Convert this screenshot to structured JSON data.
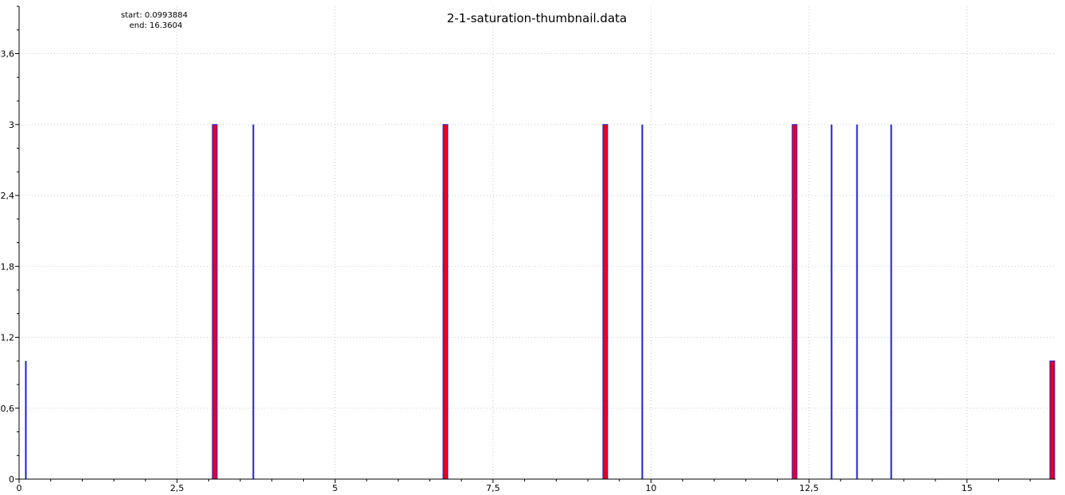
{
  "chart_data": {
    "type": "bar",
    "title": "2-1-saturation-thumbnail.data",
    "range_info": {
      "start_label": "start: 0.0993884",
      "end_label": "end: 16.3604"
    },
    "xlabel": "",
    "ylabel": "",
    "xlim": [
      0,
      16.4
    ],
    "ylim": [
      0,
      4.0
    ],
    "x_ticks": [
      0,
      2.5,
      5,
      7.5,
      10,
      12.5,
      15
    ],
    "x_tick_labels": [
      "0",
      "2,5",
      "5",
      "7,5",
      "10",
      "12,5",
      "15"
    ],
    "y_ticks": [
      0,
      0.6,
      1.2,
      1.8,
      2.4,
      3.0,
      3.6
    ],
    "y_tick_labels": [
      "0",
      "0,6",
      "1,2",
      "1,8",
      "2,4",
      "3",
      "3,6"
    ],
    "grid": true,
    "series": [
      {
        "color": "#1f1fd0",
        "values": [
          {
            "x": 0.1,
            "y": 1
          },
          {
            "x": 3.1,
            "y": 3
          },
          {
            "x": 3.7,
            "y": 3
          },
          {
            "x": 6.75,
            "y": 3
          },
          {
            "x": 9.28,
            "y": 3
          },
          {
            "x": 9.85,
            "y": 3
          },
          {
            "x": 12.27,
            "y": 3
          },
          {
            "x": 12.85,
            "y": 3
          },
          {
            "x": 13.25,
            "y": 3
          },
          {
            "x": 13.8,
            "y": 3
          },
          {
            "x": 16.35,
            "y": 1
          }
        ]
      },
      {
        "color": "#e8001c",
        "values": [
          {
            "x": 3.1,
            "y": 3
          },
          {
            "x": 6.75,
            "y": 3
          },
          {
            "x": 9.28,
            "y": 3
          },
          {
            "x": 12.27,
            "y": 3
          },
          {
            "x": 16.35,
            "y": 1
          }
        ]
      }
    ]
  }
}
